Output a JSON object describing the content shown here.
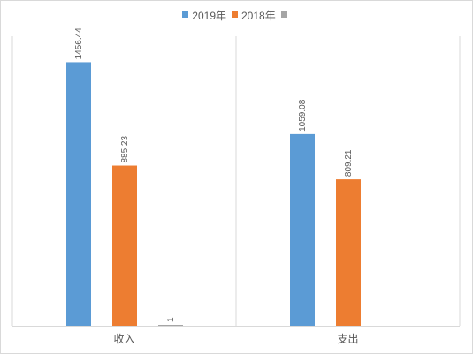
{
  "chart_data": {
    "type": "bar",
    "categories": [
      "收入",
      "支出"
    ],
    "series": [
      {
        "name": "2019年",
        "color": "#5b9bd5",
        "values": [
          1456.44,
          1059.08
        ],
        "labels": [
          "1456.44",
          "1059.08"
        ]
      },
      {
        "name": "2018年",
        "color": "#ed7d31",
        "values": [
          885.23,
          809.21
        ],
        "labels": [
          "885.23",
          "809.21"
        ]
      },
      {
        "name": "",
        "color": "#a5a5a5",
        "values": [
          1,
          null
        ],
        "labels": [
          "1",
          ""
        ]
      }
    ],
    "title": "",
    "xlabel": "",
    "ylabel": "",
    "ylim": [
      0,
      1600
    ],
    "grid": false,
    "legend_position": "top"
  }
}
